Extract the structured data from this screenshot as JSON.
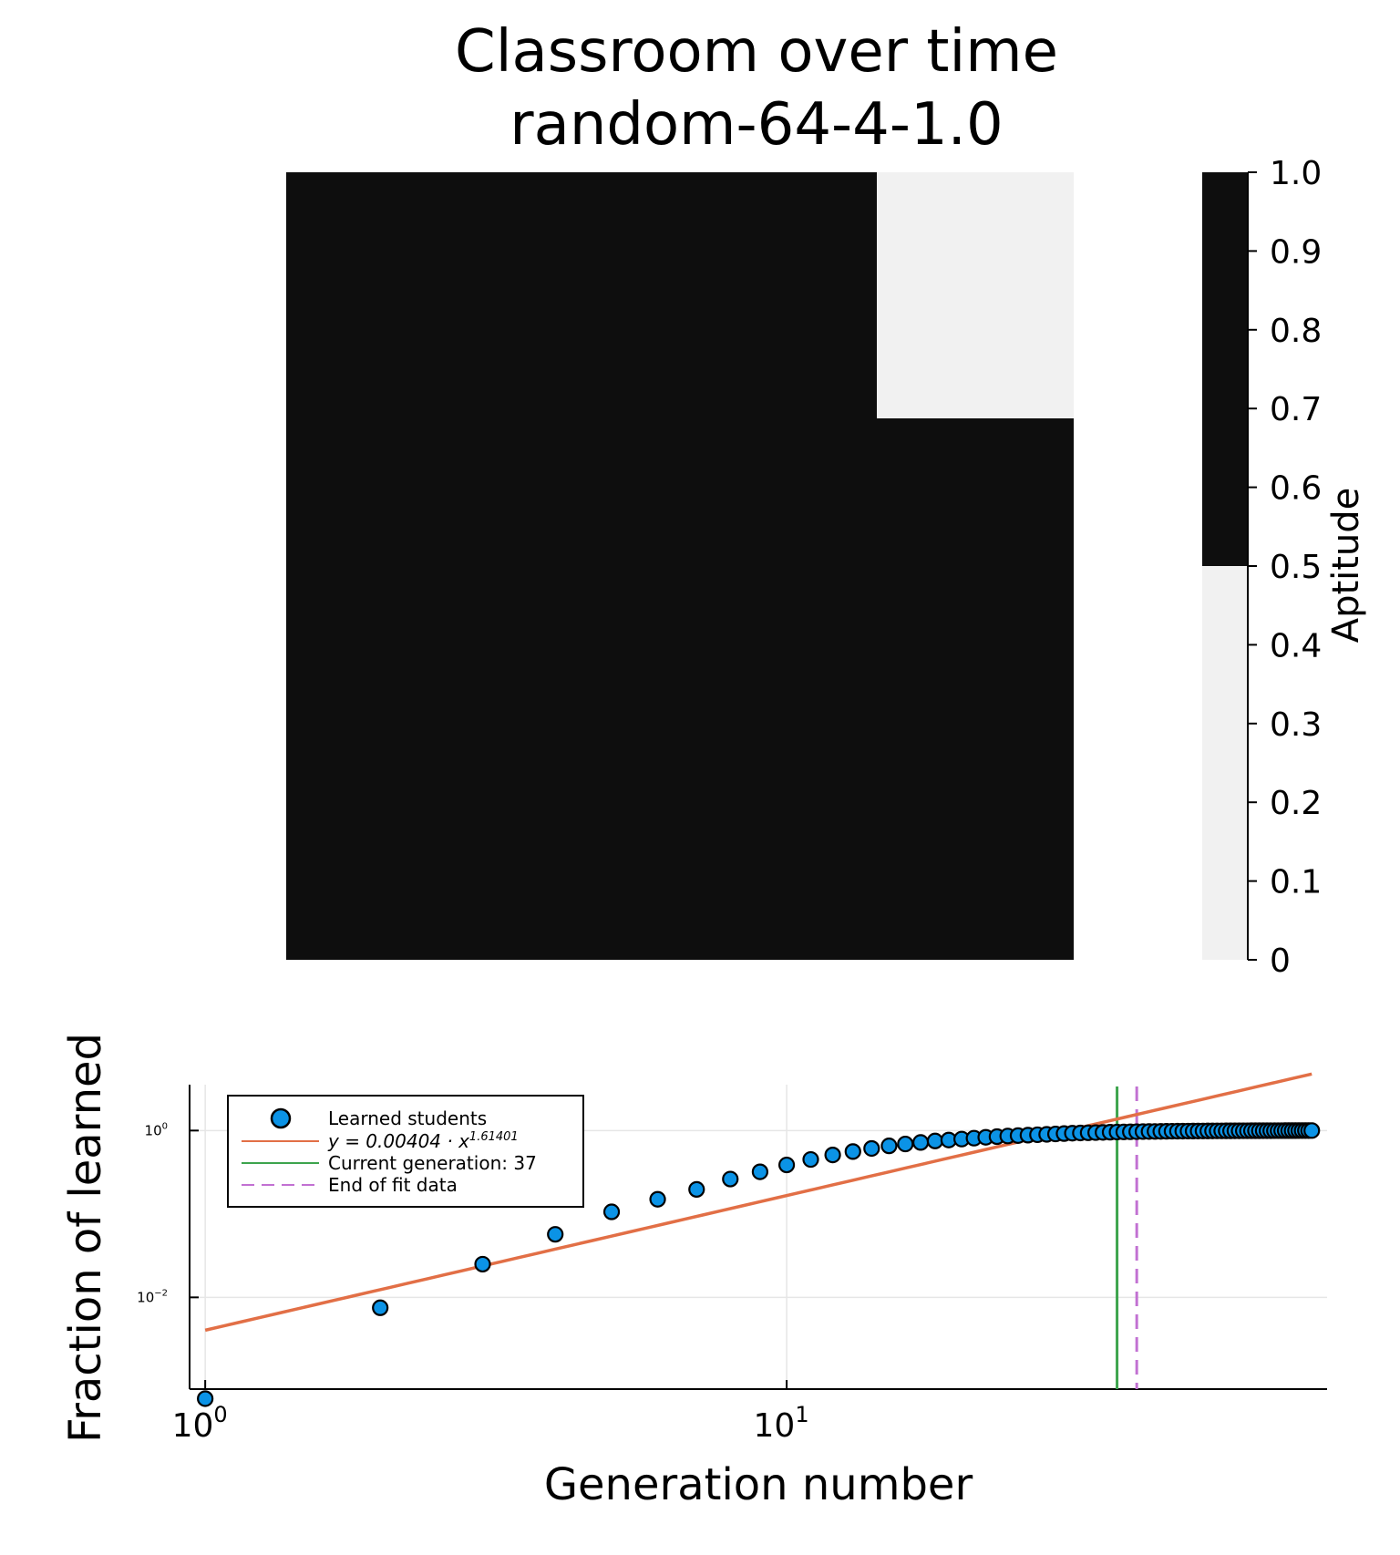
{
  "chart_data": [
    {
      "type": "heatmap",
      "title": "Classroom over time\nrandom-64-4-1.0",
      "title_lines": [
        "Classroom over time",
        "random-64-4-1.0"
      ],
      "description_cells": [
        {
          "region": "top-right",
          "value": 0
        },
        {
          "region": "rest",
          "value": 1
        }
      ],
      "colors": {
        "high": "#0e0e0e",
        "low": "#f1f1f1"
      },
      "colorbar": {
        "label": "Aptitude",
        "ticks": [
          "0",
          "0.1",
          "0.2",
          "0.3",
          "0.4",
          "0.5",
          "0.6",
          "0.7",
          "0.8",
          "0.9",
          "1.0"
        ],
        "range": [
          0,
          1
        ],
        "split": 0.5
      }
    },
    {
      "type": "scatter",
      "xlabel": "Generation number",
      "ylabel": "Fraction of learned",
      "xscale": "log",
      "yscale": "log",
      "xlim": [
        0.94,
        85
      ],
      "ylim_log10": [
        -3.1,
        0.55
      ],
      "x_ticks": [
        {
          "value": 1,
          "base": "10",
          "exp": "0"
        },
        {
          "value": 10,
          "base": "10",
          "exp": "1"
        }
      ],
      "y_ticks": [
        {
          "value": 1,
          "base": "10",
          "exp": "0"
        },
        {
          "value": 0.01,
          "base": "10",
          "exp": "−2"
        }
      ],
      "series": [
        {
          "name": "Learned students",
          "kind": "scatter",
          "color": "#0b93e6",
          "x": [
            1,
            2,
            3,
            4,
            5,
            6,
            7,
            8,
            9,
            10,
            11,
            12,
            13,
            14,
            15,
            16,
            17,
            18,
            19,
            20,
            21,
            22,
            23,
            24,
            25,
            26,
            27,
            28,
            29,
            30,
            31,
            32,
            33,
            34,
            35,
            36,
            37,
            38,
            39,
            40,
            41,
            42,
            43,
            44,
            45,
            46,
            47,
            48,
            49,
            50,
            51,
            52,
            53,
            54,
            55,
            56,
            57,
            58,
            59,
            60,
            61,
            62,
            63,
            64,
            65,
            66,
            67,
            68,
            69,
            70,
            71,
            72,
            73,
            74,
            75,
            76,
            77,
            78,
            79,
            80
          ],
          "y": [
            0.00061,
            0.0075,
            0.025,
            0.057,
            0.106,
            0.15,
            0.197,
            0.262,
            0.32,
            0.387,
            0.45,
            0.51,
            0.56,
            0.61,
            0.655,
            0.69,
            0.72,
            0.75,
            0.77,
            0.79,
            0.81,
            0.83,
            0.845,
            0.86,
            0.87,
            0.88,
            0.89,
            0.9,
            0.91,
            0.92,
            0.93,
            0.935,
            0.94,
            0.945,
            0.95,
            0.955,
            0.96,
            0.963,
            0.966,
            0.969,
            0.972,
            0.974,
            0.976,
            0.978,
            0.98,
            0.982,
            0.983,
            0.984,
            0.985,
            0.986,
            0.987,
            0.988,
            0.989,
            0.99,
            0.991,
            0.991,
            0.992,
            0.992,
            0.993,
            0.993,
            0.994,
            0.994,
            0.995,
            0.995,
            0.995,
            0.996,
            0.996,
            0.996,
            0.997,
            0.997,
            0.997,
            0.998,
            0.998,
            0.998,
            0.998,
            0.999,
            0.999,
            0.999,
            0.999,
            1.0
          ]
        },
        {
          "name": "y = 0.00404 · x^1.61401",
          "kind": "fit",
          "color": "#e26f46",
          "a": 0.00404,
          "b": 1.61401,
          "x_range": [
            1,
            80
          ]
        },
        {
          "name": "Current generation: 37",
          "kind": "vline",
          "color": "#3da44d",
          "x": 37
        },
        {
          "name": "End of fit data",
          "kind": "vline-dashed",
          "color": "#c271d2",
          "x": 40
        }
      ],
      "legend": {
        "placement": "top-left",
        "entries": [
          "Learned students",
          "y = 0.00404 · x",
          "1.61401",
          "Current generation: 37",
          "End of fit data"
        ]
      }
    }
  ]
}
